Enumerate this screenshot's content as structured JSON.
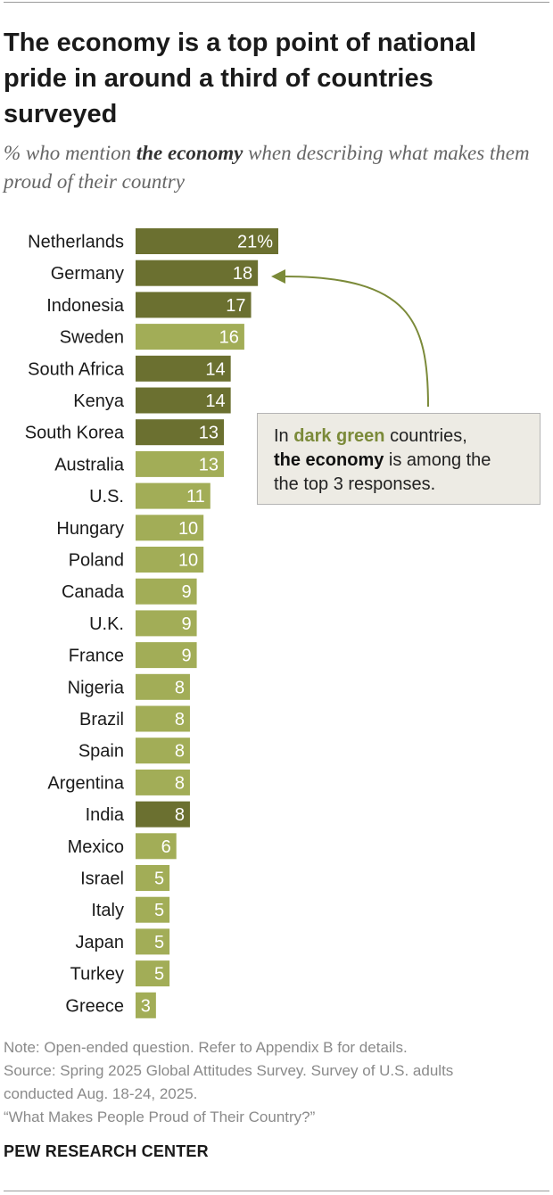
{
  "header": {
    "title": "The economy is a top point of national pride in around a third of countries surveyed",
    "subtitle_pre": "% who mention ",
    "subtitle_bold": "the economy",
    "subtitle_post": " when describing what makes them proud of their country"
  },
  "colors": {
    "dark_green": "#6b7030",
    "light_green": "#a2ad57",
    "callout_green": "#7b8a39"
  },
  "chart_data": {
    "type": "bar",
    "orientation": "horizontal",
    "categories": [
      "Netherlands",
      "Germany",
      "Indonesia",
      "Sweden",
      "South Africa",
      "Kenya",
      "South Korea",
      "Australia",
      "U.S.",
      "Hungary",
      "Poland",
      "Canada",
      "U.K.",
      "France",
      "Nigeria",
      "Brazil",
      "Spain",
      "Argentina",
      "India",
      "Mexico",
      "Israel",
      "Italy",
      "Japan",
      "Turkey",
      "Greece"
    ],
    "values": [
      21,
      18,
      17,
      16,
      14,
      14,
      13,
      13,
      11,
      10,
      10,
      9,
      9,
      9,
      8,
      8,
      8,
      8,
      8,
      6,
      5,
      5,
      5,
      5,
      3
    ],
    "value_labels": [
      "21%",
      "18",
      "17",
      "16",
      "14",
      "14",
      "13",
      "13",
      "11",
      "10",
      "10",
      "9",
      "9",
      "9",
      "8",
      "8",
      "8",
      "8",
      "8",
      "6",
      "5",
      "5",
      "5",
      "5",
      "3"
    ],
    "top3": [
      true,
      true,
      true,
      false,
      true,
      true,
      true,
      false,
      false,
      false,
      false,
      false,
      false,
      false,
      false,
      false,
      false,
      false,
      true,
      false,
      false,
      false,
      false,
      false,
      false
    ],
    "title": "",
    "xlabel": "",
    "ylabel": "",
    "xlim": [
      0,
      21
    ],
    "grid": false,
    "legend": "callout"
  },
  "callout": {
    "line1_pre": "In ",
    "line1_green": "dark green",
    "line1_post": " countries,",
    "line2_bold": "the economy",
    "line2_post": " is among the",
    "line3": "the top 3 responses."
  },
  "notes": {
    "note": "Note: Open-ended question. Refer to Appendix B for details.",
    "source1": "Source: Spring 2025 Global Attitudes Survey. Survey of U.S. adults",
    "source2": "conducted Aug. 18-24, 2025.",
    "report": "“What Makes People Proud of Their Country?”"
  },
  "brand": "PEW RESEARCH CENTER"
}
